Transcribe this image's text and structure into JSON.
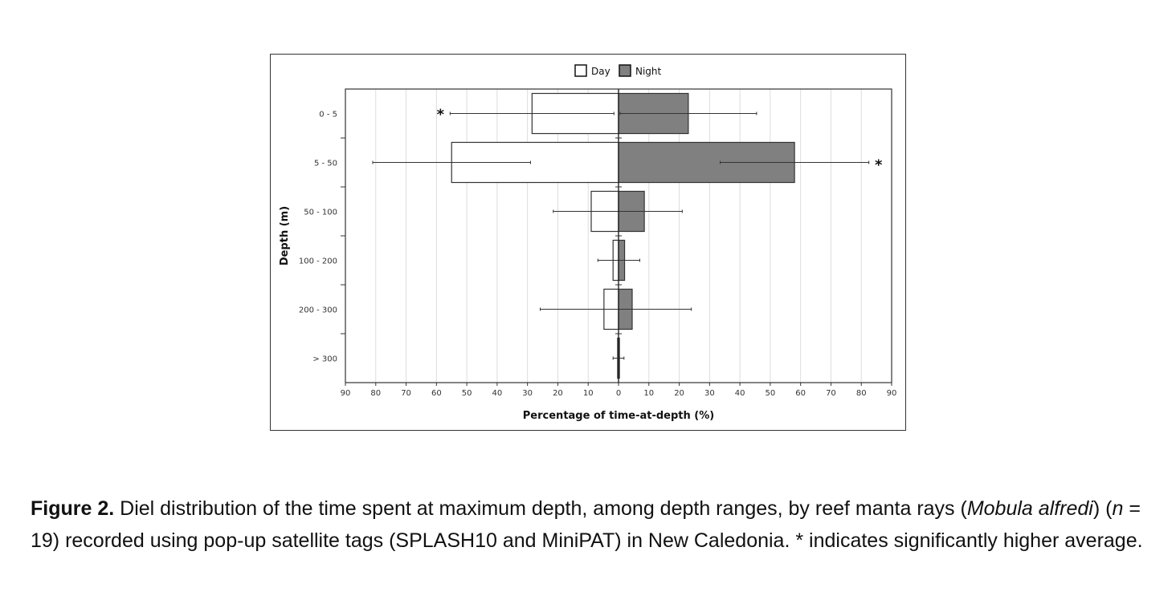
{
  "chart_data": {
    "type": "bar",
    "orientation": "horizontal",
    "layout": "back-to-back",
    "categories": [
      "0 - 5",
      "5 - 50",
      "50 - 100",
      "100 - 200",
      "200 - 300",
      "> 300"
    ],
    "series": [
      {
        "name": "Day",
        "color": "#ffffff",
        "values": [
          28.5,
          55,
          9,
          1.8,
          4.8,
          0.3
        ],
        "error": [
          27,
          26,
          12.5,
          5,
          21,
          1.5
        ],
        "significant": [
          true,
          false,
          false,
          false,
          false,
          false
        ]
      },
      {
        "name": "Night",
        "color": "#808080",
        "values": [
          23,
          58,
          8.5,
          2,
          4.5,
          0.3
        ],
        "error": [
          22.5,
          24.5,
          12.5,
          5,
          19.5,
          1.5
        ],
        "significant": [
          false,
          true,
          false,
          false,
          false,
          false
        ]
      }
    ],
    "xticks": [
      "90",
      "80",
      "70",
      "60",
      "50",
      "40",
      "30",
      "20",
      "10",
      "0",
      "10",
      "20",
      "30",
      "40",
      "50",
      "60",
      "70",
      "80",
      "90"
    ],
    "xlim": [
      -90,
      90
    ],
    "xlabel": "Percentage of time-at-depth (%)",
    "ylabel": "Depth (m)",
    "significance_marker": "*",
    "legend": [
      "Day",
      "Night"
    ],
    "legend_position": "top-center",
    "grid": true
  },
  "caption": {
    "label": "Figure 2.",
    "text_1": " Diel distribution of the time spent at maximum depth, among depth ranges, by reef manta rays (",
    "species": "Mobula alfredi",
    "text_2": ") (",
    "n_symbol": "n",
    "text_3": " = 19) recorded using pop-up satellite tags (SPLASH10 and MiniPAT) in New Caledonia. * indicates significantly higher average."
  }
}
